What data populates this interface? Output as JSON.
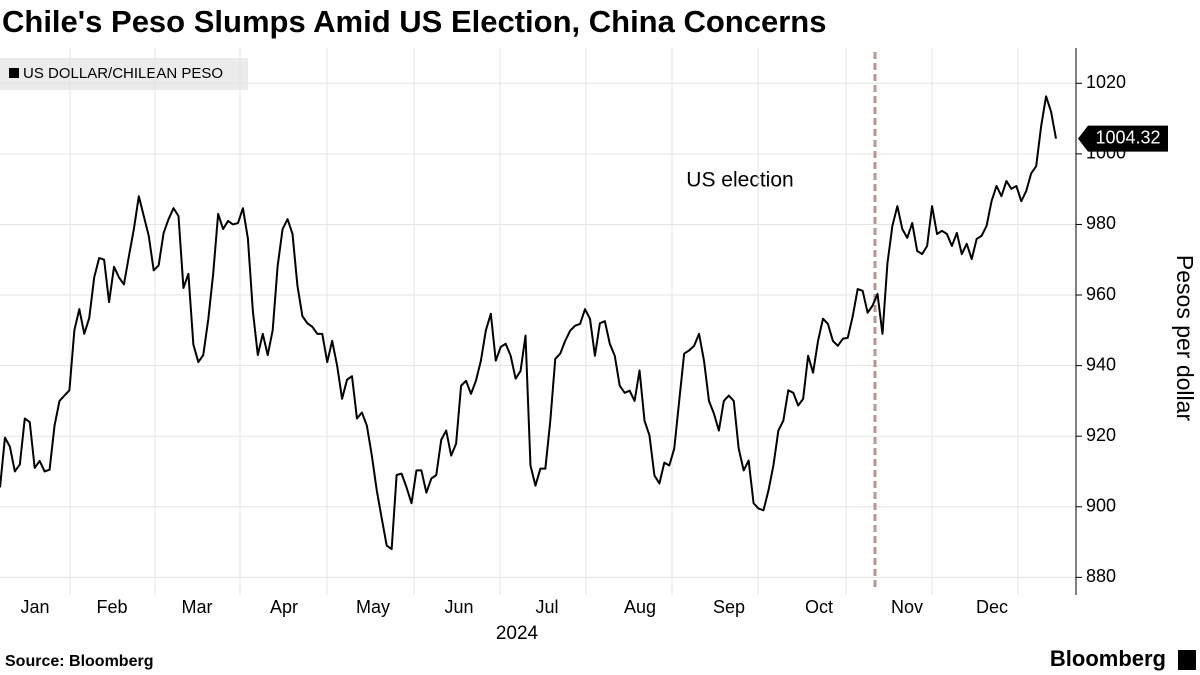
{
  "chart_data": {
    "type": "line",
    "title": "Chile's Peso Slumps Amid US Election, China Concerns",
    "series": [
      {
        "name": "US DOLLAR/CHILEAN PESO",
        "color": "#000000",
        "values": [
          905.5,
          919.6,
          917,
          910,
          912,
          925,
          924,
          911,
          913,
          910,
          910.5,
          923,
          930,
          931.5,
          933,
          950,
          956,
          949,
          953.5,
          965,
          970.5,
          970,
          958,
          968,
          965,
          963,
          971,
          978.7,
          988,
          982.4,
          976.8,
          967,
          968.4,
          977.6,
          981.5,
          984.6,
          982.4,
          962,
          966,
          946,
          941,
          943,
          953,
          966,
          983,
          978.7,
          981,
          980,
          980.4,
          984.6,
          976,
          955.5,
          943,
          949,
          943,
          950,
          968.2,
          978.7,
          981.5,
          977.3,
          962.6,
          954,
          952,
          951,
          949,
          949,
          941,
          947,
          940,
          930.6,
          936,
          937,
          925,
          926.7,
          923,
          914.5,
          904.6,
          896.7,
          889,
          888,
          909,
          909.4,
          905.5,
          901,
          910.3,
          910.3,
          904,
          908,
          909,
          919,
          921.6,
          914.5,
          917.9,
          934.3,
          935.7,
          932,
          935.7,
          941.4,
          950,
          954.7,
          941.4,
          945.3,
          946.2,
          942.8,
          936.3,
          938.5,
          948.5,
          911.7,
          906,
          910.8,
          910.8,
          924.4,
          941.9,
          943.4,
          947,
          949.9,
          951.3,
          951.8,
          956,
          953.3,
          942.8,
          952,
          952.6,
          946.2,
          942.8,
          934.3,
          932.3,
          932.9,
          930,
          938.6,
          924.4,
          920.2,
          908.9,
          906.6,
          912.5,
          911.7,
          916.5,
          930,
          943.4,
          944.3,
          945.6,
          949,
          941.4,
          930,
          926.4,
          921.6,
          930,
          931.5,
          930,
          916.5,
          910.3,
          913.1,
          901,
          899.5,
          899,
          904.6,
          911.7,
          921.6,
          924.4,
          933,
          932.3,
          928.7,
          930.6,
          942.8,
          938,
          947,
          953.3,
          951.8,
          947,
          945.6,
          947.6,
          947.9,
          954,
          961.7,
          961.2,
          955,
          957,
          960.3,
          949,
          969,
          979.6,
          985.2,
          978.7,
          976.2,
          980.4,
          972.5,
          971.6,
          973.9,
          985.2,
          977.3,
          978.2,
          977.3,
          973.9,
          977.6,
          971.6,
          974.5,
          970.2,
          975.9,
          976.8,
          979.6,
          986.6,
          990.9,
          988,
          992.3,
          990.1,
          990.9,
          986.6,
          989.5,
          994.5,
          996.5,
          1007.8,
          1016.3,
          1012,
          1004.32
        ]
      }
    ],
    "x_labels": [
      "Jan",
      "Feb",
      "Mar",
      "Apr",
      "May",
      "Jun",
      "Jul",
      "Aug",
      "Sep",
      "Oct",
      "Nov",
      "Dec"
    ],
    "x_year": "2024",
    "ylim": [
      875,
      1030
    ],
    "yticks": [
      880,
      900,
      920,
      940,
      960,
      980,
      1000,
      1020
    ],
    "y_label": "Pesos per dollar",
    "annotation": "US election",
    "grid": true,
    "source": "Source: Bloomberg",
    "brand": "Bloomberg"
  }
}
